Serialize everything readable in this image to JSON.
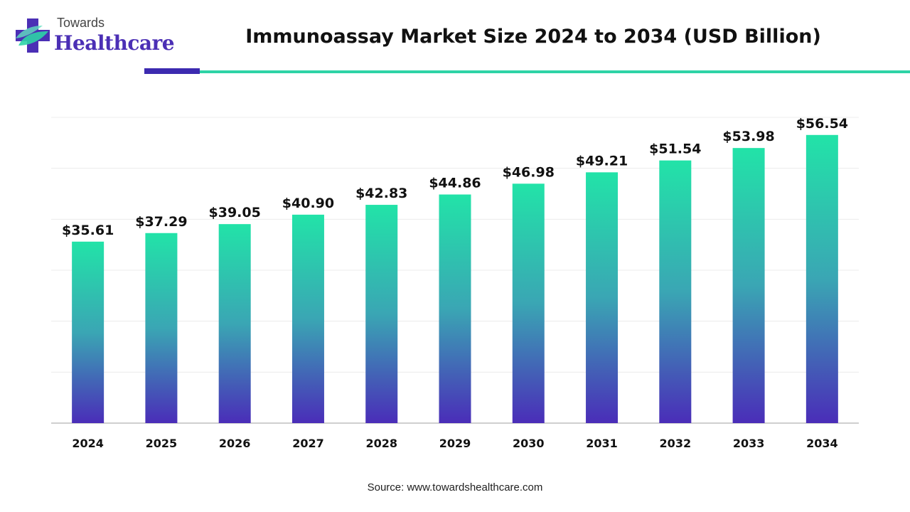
{
  "brand": {
    "top": "Towards",
    "main": "Healthcare",
    "colors": {
      "purple": "#4b2fb5",
      "teal": "#2ed3a6",
      "teal_light": "#62e0c0"
    }
  },
  "header": {
    "title": "Immunoassay Market Size 2024 to 2034 (USD Billion)",
    "accent_dark": "#3c2ab0",
    "accent_teal": "#2ed3a6"
  },
  "chart_data": {
    "type": "bar",
    "title": "Immunoassay Market Size 2024 to 2034 (USD Billion)",
    "xlabel": "",
    "ylabel": "",
    "ylim": [
      0,
      60
    ],
    "grid": true,
    "categories": [
      "2024",
      "2025",
      "2026",
      "2027",
      "2028",
      "2029",
      "2030",
      "2031",
      "2032",
      "2033",
      "2034"
    ],
    "values": [
      35.61,
      37.29,
      39.05,
      40.9,
      42.83,
      44.86,
      46.98,
      49.21,
      51.54,
      53.98,
      56.54
    ],
    "labels": [
      "$35.61",
      "$37.29",
      "$39.05",
      "$40.90",
      "$42.83",
      "$44.86",
      "$46.98",
      "$49.21",
      "$51.54",
      "$53.98",
      "$56.54"
    ],
    "gradient": {
      "top": "#22e3a8",
      "mid": "#3aa6b4",
      "bottom": "#4a2db8"
    }
  },
  "footer": {
    "source": "Source: www.towardshealthcare.com"
  }
}
